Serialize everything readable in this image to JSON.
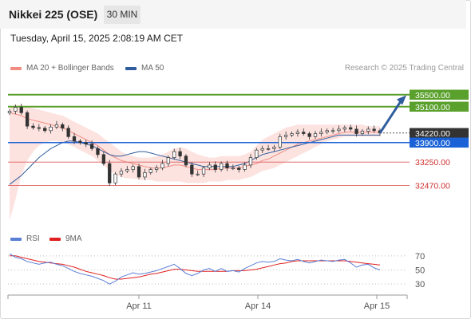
{
  "header": {
    "title": "Nikkei 225 (OSE)",
    "timeframe": "30 MIN"
  },
  "timestamp": "Tuesday, April 15, 2025 2:08:19 AM CET",
  "legend": {
    "ma20": {
      "label": "MA 20 + Bollinger Bands",
      "color": "#f28b82"
    },
    "ma50": {
      "label": "MA 50",
      "color": "#2f5d9e"
    }
  },
  "credit": "Research © 2025 Trading Central",
  "rsi_legend": {
    "rsi": {
      "label": "RSI",
      "color": "#5b7fd6"
    },
    "ma9": {
      "label": "9MA",
      "color": "#e02020"
    }
  },
  "chart_data": {
    "type": "candlestick",
    "ylim": [
      31150,
      36000
    ],
    "x_ticks": [
      "Apr 11",
      "Apr 14",
      "Apr 15"
    ],
    "levels": [
      {
        "value": 35500,
        "label": "35500.00",
        "kind": "resistance",
        "color": "#5aa02c"
      },
      {
        "value": 35100,
        "label": "35100.00",
        "kind": "resistance",
        "color": "#5aa02c"
      },
      {
        "value": 34220,
        "label": "34220.00",
        "kind": "last",
        "color": "#333333"
      },
      {
        "value": 33900,
        "label": "33900.00",
        "kind": "pivot",
        "color": "#1a62d6"
      },
      {
        "value": 33250,
        "label": "33250.00",
        "kind": "support",
        "color": "#d03030"
      },
      {
        "value": 32470,
        "label": "32470.00",
        "kind": "support",
        "color": "#d03030"
      }
    ],
    "close_path": [
      34950,
      35080,
      34900,
      34450,
      34400,
      34380,
      34300,
      34420,
      34500,
      34380,
      34100,
      33950,
      33900,
      33850,
      33700,
      33500,
      33200,
      32550,
      32850,
      32950,
      33000,
      33100,
      32750,
      32900,
      33000,
      33050,
      33200,
      33400,
      33600,
      33450,
      33150,
      32850,
      32850,
      33050,
      33150,
      33000,
      33200,
      33050,
      33050,
      33000,
      33150,
      33400,
      33650,
      33700,
      33700,
      33750,
      34100,
      34150,
      34200,
      34250,
      34200,
      34100,
      34200,
      34250,
      34300,
      34300,
      34350,
      34400,
      34350,
      34200,
      34280,
      34350,
      34300,
      34220
    ],
    "ma20": [
      34900,
      34850,
      34800,
      34700,
      34650,
      34600,
      34550,
      34500,
      34450,
      34400,
      34300,
      34200,
      34100,
      34000,
      33900,
      33800,
      33650,
      33500,
      33400,
      33300,
      33250,
      33200,
      33150,
      33100,
      33050,
      33050,
      33050,
      33100,
      33150,
      33150,
      33100,
      33050,
      33000,
      33000,
      33000,
      33000,
      33050,
      33050,
      33050,
      33050,
      33100,
      33150,
      33200,
      33300,
      33350,
      33450,
      33550,
      33650,
      33750,
      33850,
      33900,
      33950,
      34000,
      34050,
      34100,
      34150,
      34200,
      34250,
      34250,
      34250,
      34250,
      34250,
      34250,
      34250
    ],
    "ma50": [
      32500,
      32650,
      32800,
      33000,
      33200,
      33400,
      33550,
      33700,
      33800,
      33900,
      33950,
      33950,
      33900,
      33850,
      33800,
      33700,
      33600,
      33500,
      33450,
      33450,
      33500,
      33550,
      33600,
      33600,
      33550,
      33500,
      33450,
      33400,
      33350,
      33300,
      33250,
      33200,
      33150,
      33100,
      33100,
      33100,
      33100,
      33100,
      33100,
      33150,
      33200,
      33300,
      33400,
      33500,
      33550,
      33600,
      33650,
      33700,
      33750,
      33800,
      33850,
      33900,
      33950,
      34000,
      34050,
      34100,
      34150,
      34150,
      34150,
      34150,
      34150,
      34150,
      34150,
      34150
    ],
    "bb_upper": [
      35100,
      35150,
      35150,
      35100,
      35050,
      35000,
      34950,
      34900,
      34850,
      34800,
      34700,
      34600,
      34500,
      34400,
      34300,
      34200,
      34050,
      33900,
      33750,
      33600,
      33500,
      33450,
      33400,
      33400,
      33400,
      33450,
      33500,
      33600,
      33700,
      33750,
      33700,
      33600,
      33500,
      33450,
      33400,
      33400,
      33450,
      33450,
      33450,
      33450,
      33500,
      33600,
      33800,
      34000,
      34100,
      34200,
      34300,
      34400,
      34450,
      34500,
      34500,
      34500,
      34500,
      34500,
      34500,
      34500,
      34500,
      34500,
      34500,
      34500,
      34500,
      34450,
      34450,
      34450
    ],
    "bb_lower": [
      31300,
      32000,
      32800,
      33300,
      33600,
      33800,
      33900,
      33950,
      33950,
      33900,
      33850,
      33750,
      33650,
      33550,
      33450,
      33300,
      33150,
      32950,
      32850,
      32750,
      32700,
      32700,
      32650,
      32650,
      32650,
      32600,
      32600,
      32600,
      32600,
      32600,
      32550,
      32550,
      32550,
      32550,
      32600,
      32600,
      32600,
      32650,
      32650,
      32650,
      32700,
      32750,
      32850,
      32950,
      33000,
      33050,
      33150,
      33250,
      33350,
      33450,
      33550,
      33650,
      33750,
      33850,
      33950,
      34000,
      34050,
      34100,
      34100,
      34100,
      34100,
      34100,
      34100,
      34100
    ],
    "projection": {
      "from": 34220,
      "to": 35400
    },
    "rsi": {
      "ylim": [
        20,
        80
      ],
      "levels": [
        70,
        50,
        30
      ],
      "rsi": [
        73,
        68,
        66,
        62,
        60,
        58,
        60,
        61,
        58,
        56,
        52,
        48,
        45,
        43,
        41,
        38,
        35,
        30,
        34,
        40,
        43,
        46,
        44,
        45,
        47,
        49,
        52,
        55,
        58,
        52,
        45,
        42,
        45,
        50,
        52,
        48,
        52,
        48,
        49,
        47,
        52,
        56,
        60,
        62,
        61,
        62,
        66,
        64,
        63,
        65,
        62,
        60,
        62,
        64,
        63,
        62,
        64,
        65,
        60,
        54,
        57,
        58,
        53,
        50
      ],
      "ma9": [
        70,
        70,
        68,
        66,
        64,
        62,
        61,
        60,
        59,
        58,
        56,
        54,
        51,
        48,
        46,
        44,
        42,
        39,
        37,
        37,
        38,
        39,
        40,
        42,
        44,
        45,
        47,
        49,
        51,
        51,
        50,
        49,
        48,
        48,
        48,
        48,
        48,
        48,
        49,
        49,
        49,
        50,
        51,
        53,
        55,
        57,
        59,
        60,
        62,
        63,
        63,
        63,
        63,
        63,
        63,
        63,
        63,
        63,
        62,
        61,
        60,
        59,
        58,
        57
      ]
    }
  }
}
